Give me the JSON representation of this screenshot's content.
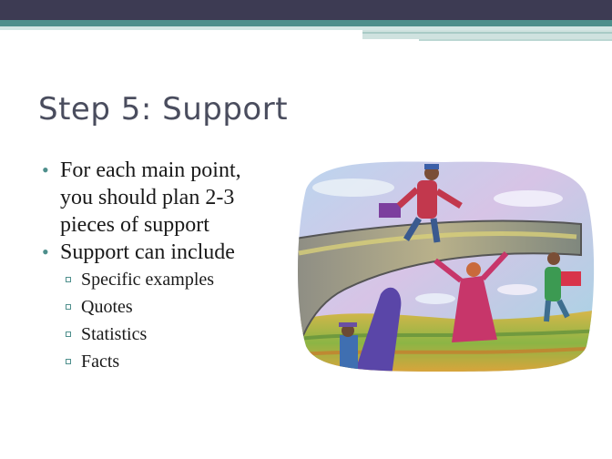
{
  "slide": {
    "title": "Step 5: Support",
    "bullets": [
      {
        "text": "For each main point,",
        "text2": "you should plan 2-3",
        "text3": "pieces of support"
      },
      {
        "text": "Support can include"
      }
    ],
    "sub_bullets": [
      "Specific examples",
      "Quotes",
      "Statistics",
      "Facts"
    ]
  },
  "colors": {
    "top_bar": "#3d3b53",
    "accent": "#4e8f8c",
    "title": "#4a4d5e"
  },
  "illustration": {
    "icon": "people-on-bridge-illustration"
  }
}
